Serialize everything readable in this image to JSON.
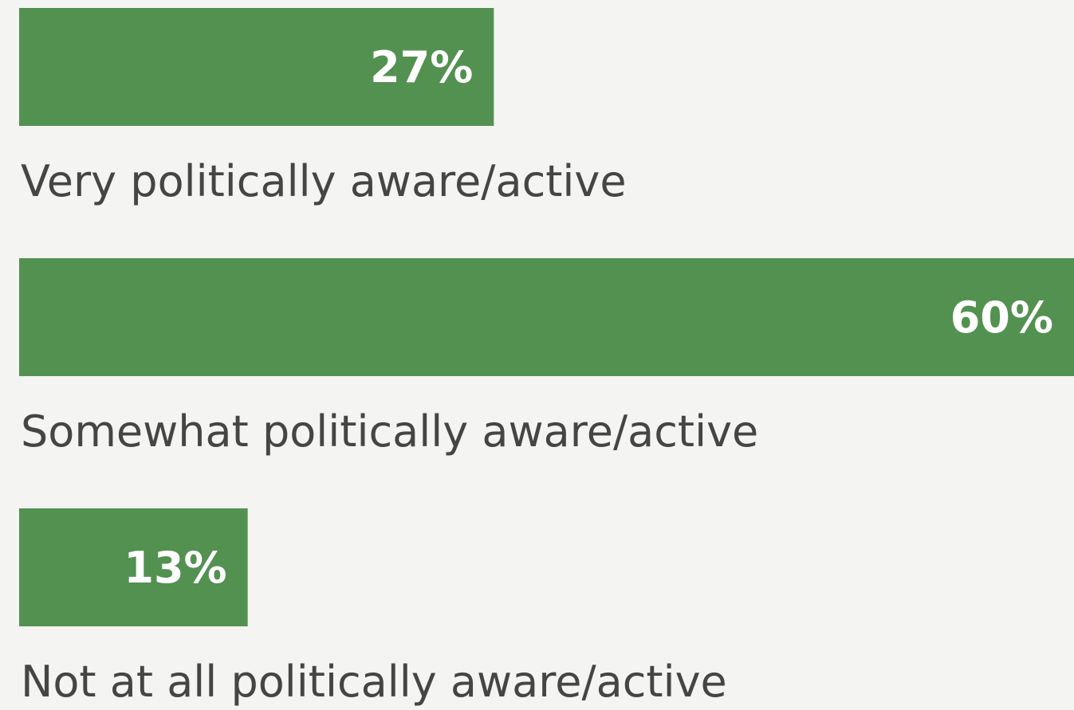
{
  "chart_data": {
    "type": "bar",
    "orientation": "horizontal",
    "categories": [
      "Very politically aware/active",
      "Somewhat politically aware/active",
      "Not at all politically aware/active"
    ],
    "values": [
      27,
      60,
      13
    ],
    "value_labels": [
      "27%",
      "60%",
      "13%"
    ],
    "color": "#539150"
  }
}
